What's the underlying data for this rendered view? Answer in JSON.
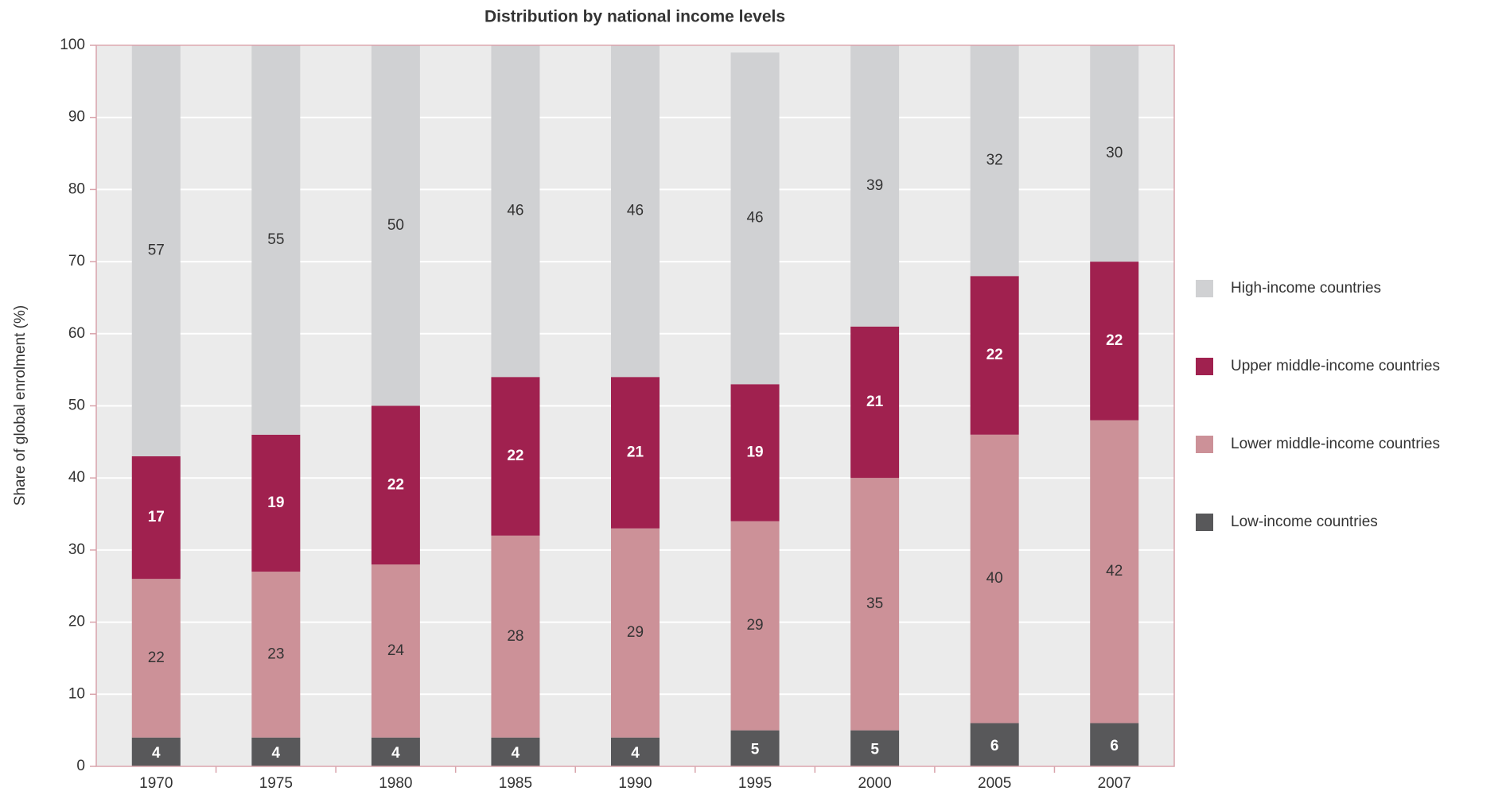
{
  "chart_data": {
    "type": "stacked_bar",
    "title": "Distribution by national income levels",
    "y_label": "Share of global enrolment (%)",
    "categories": [
      "1970",
      "1975",
      "1980",
      "1985",
      "1990",
      "1995",
      "2000",
      "2005",
      "2007"
    ],
    "series": [
      {
        "name": "Low-income countries",
        "color": "#58585a",
        "label_color": "#ffffff",
        "values": [
          4,
          4,
          4,
          4,
          4,
          5,
          5,
          6,
          6
        ]
      },
      {
        "name": "Lower middle-income countries",
        "color": "#cc9198",
        "label_color": "#333333",
        "values": [
          22,
          23,
          24,
          28,
          29,
          29,
          35,
          40,
          42
        ]
      },
      {
        "name": "Upper middle-income countries",
        "color": "#a0214f",
        "label_color": "#ffffff",
        "values": [
          17,
          19,
          22,
          22,
          21,
          19,
          21,
          22,
          22
        ]
      },
      {
        "name": "High-income countries",
        "color": "#d0d1d3",
        "label_color": "#333333",
        "values": [
          57,
          55,
          50,
          46,
          46,
          46,
          39,
          32,
          30
        ]
      }
    ],
    "ylim": [
      0,
      100
    ],
    "yticks": [
      0,
      10,
      20,
      30,
      40,
      50,
      60,
      70,
      80,
      90,
      100
    ],
    "grid": true,
    "legend": "right"
  }
}
